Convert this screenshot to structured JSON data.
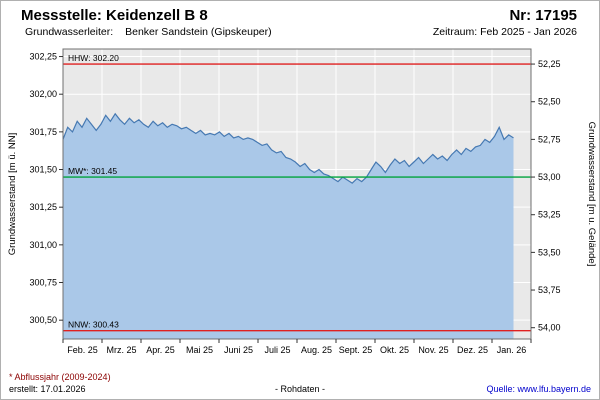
{
  "header": {
    "station_label": "Messstelle: Keidenzell B 8",
    "number_label": "Nr: 17195",
    "aquifer_label": "Grundwasserleiter:",
    "aquifer_value": "Benker Sandstein (Gipskeuper)",
    "period_label": "Zeitraum: Feb 2025 - Jan 2026"
  },
  "chart_data": {
    "type": "area",
    "title": "",
    "ylabel_left": "Grundwasserstand [m ü. NN]",
    "ylabel_right": "Grundwasserstand [m u. Gelände]",
    "xlabel": "",
    "ylim": [
      300.375,
      302.3
    ],
    "x_months_total": 12,
    "x_data_end": 11.55,
    "grid": true,
    "legend": "none",
    "x_tick_labels": [
      "Feb. 25",
      "Mrz. 25",
      "Apr. 25",
      "Mai 25",
      "Juni 25",
      "Juli 25",
      "Aug. 25",
      "Sept. 25",
      "Okt. 25",
      "Nov. 25",
      "Dez. 25",
      "Jan. 26"
    ],
    "y_ticks_left": [
      {
        "value": 302.25,
        "label": "302,25"
      },
      {
        "value": 302.0,
        "label": "302,00"
      },
      {
        "value": 301.75,
        "label": "301,75"
      },
      {
        "value": 301.5,
        "label": "301,50"
      },
      {
        "value": 301.25,
        "label": "301,25"
      },
      {
        "value": 301.0,
        "label": "301,00"
      },
      {
        "value": 300.75,
        "label": "300,75"
      },
      {
        "value": 300.5,
        "label": "300,50"
      }
    ],
    "y_ticks_right": [
      {
        "at": 302.2,
        "label": "52,25"
      },
      {
        "at": 301.95,
        "label": "52,50"
      },
      {
        "at": 301.7,
        "label": "52,75"
      },
      {
        "at": 301.45,
        "label": "53,00"
      },
      {
        "at": 301.2,
        "label": "53,25"
      },
      {
        "at": 300.95,
        "label": "53,50"
      },
      {
        "at": 300.7,
        "label": "53,75"
      },
      {
        "at": 300.45,
        "label": "54,00"
      }
    ],
    "reference_lines": [
      {
        "name": "HHW",
        "label": "HHW: 302.20",
        "value": 302.2,
        "color": "#e02020"
      },
      {
        "name": "MW",
        "label": "MW*: 301.45",
        "value": 301.45,
        "color": "#00a33c"
      },
      {
        "name": "NNW",
        "label": "NNW: 300.43",
        "value": 300.43,
        "color": "#e02020"
      }
    ],
    "series": [
      {
        "name": "Grundwasserstand Rohdaten",
        "values": [
          301.7,
          301.78,
          301.75,
          301.82,
          301.78,
          301.84,
          301.8,
          301.76,
          301.8,
          301.86,
          301.82,
          301.87,
          301.83,
          301.8,
          301.84,
          301.81,
          301.83,
          301.8,
          301.78,
          301.82,
          301.79,
          301.81,
          301.78,
          301.8,
          301.79,
          301.77,
          301.78,
          301.76,
          301.74,
          301.76,
          301.73,
          301.74,
          301.73,
          301.75,
          301.72,
          301.74,
          301.71,
          301.72,
          301.7,
          301.71,
          301.7,
          301.68,
          301.66,
          301.67,
          301.63,
          301.61,
          301.62,
          301.58,
          301.57,
          301.55,
          301.52,
          301.54,
          301.5,
          301.48,
          301.5,
          301.47,
          301.46,
          301.44,
          301.42,
          301.45,
          301.43,
          301.41,
          301.44,
          301.42,
          301.45,
          301.5,
          301.55,
          301.52,
          301.48,
          301.53,
          301.57,
          301.54,
          301.56,
          301.52,
          301.55,
          301.58,
          301.54,
          301.57,
          301.6,
          301.57,
          301.59,
          301.56,
          301.6,
          301.63,
          301.6,
          301.64,
          301.62,
          301.65,
          301.66,
          301.7,
          301.68,
          301.72,
          301.78,
          301.7,
          301.73,
          301.71
        ]
      }
    ],
    "colors": {
      "area_fill": "#aac8e8",
      "area_line": "#4679b2",
      "plot_bg": "#e9e9e9",
      "grid": "#ffffff",
      "axis": "#707070",
      "tick_text": "#000000"
    }
  },
  "footer": {
    "note": "* Abflussjahr (2009-2024)",
    "created": "erstellt:  17.01.2026",
    "mode": "- Rohdaten -",
    "source": "Quelle: www.lfu.bayern.de"
  }
}
